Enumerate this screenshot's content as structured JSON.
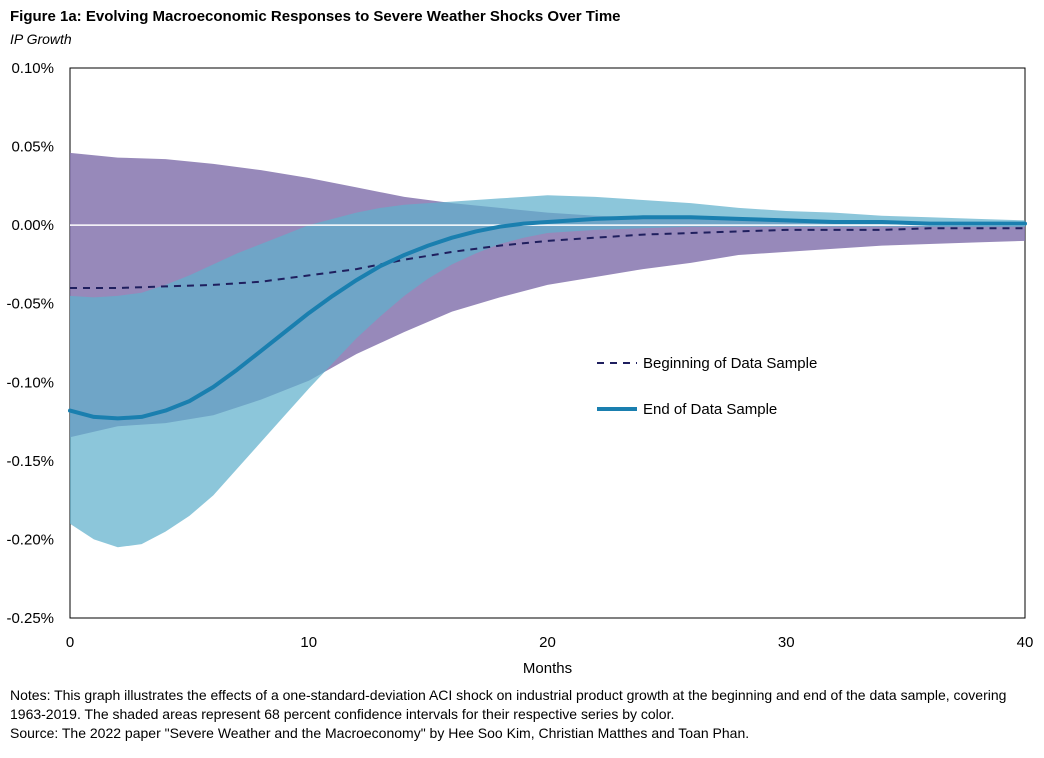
{
  "figure": {
    "title": "Figure 1a: Evolving Macroeconomic Responses to Severe Weather Shocks Over Time",
    "subtitle": "IP Growth"
  },
  "notes": {
    "line1": "Notes: This graph illustrates the effects of a one-standard-deviation ACI shock on industrial product growth at the beginning and end of the data sample, covering 1963-2019.  The shaded areas represent 68 percent confidence intervals for their respective series by color.",
    "source": "Source: The 2022  paper \"Severe Weather and the Macroeconomy\" by Hee Soo Kim, Christian Matthes and Toan Phan."
  },
  "colors": {
    "beginning_band": "#8574AE",
    "end_band": "#5FB0CC",
    "beginning_line": "#1F1F5E",
    "end_line": "#1A7FAF",
    "zero_line": "#ffffff"
  },
  "chart_data": {
    "type": "line",
    "xlabel": "Months",
    "ylabel": "",
    "xlim": [
      0,
      40
    ],
    "ylim": [
      -0.25,
      0.1
    ],
    "x_ticks": [
      0,
      10,
      20,
      30,
      40
    ],
    "x_tick_labels": [
      "0",
      "10",
      "20",
      "30",
      "40"
    ],
    "y_ticks": [
      0.1,
      0.05,
      0.0,
      -0.05,
      -0.1,
      -0.15,
      -0.2,
      -0.25
    ],
    "y_tick_labels": [
      "0.10%",
      "0.05%",
      "0.00%",
      "-0.05%",
      "-0.10%",
      "-0.15%",
      "-0.20%",
      "-0.25%"
    ],
    "legend_position": "middle-right",
    "series": [
      {
        "name": "Beginning of Data Sample",
        "style": "dashed",
        "x": [
          0,
          2,
          4,
          6,
          8,
          10,
          12,
          14,
          16,
          18,
          20,
          22,
          24,
          26,
          28,
          30,
          32,
          34,
          36,
          38,
          40
        ],
        "values": [
          -0.04,
          -0.04,
          -0.039,
          -0.038,
          -0.036,
          -0.032,
          -0.028,
          -0.022,
          -0.017,
          -0.013,
          -0.01,
          -0.008,
          -0.006,
          -0.005,
          -0.004,
          -0.003,
          -0.003,
          -0.003,
          -0.002,
          -0.002,
          -0.002
        ],
        "band_upper": [
          0.046,
          0.043,
          0.042,
          0.039,
          0.035,
          0.03,
          0.024,
          0.018,
          0.014,
          0.011,
          0.008,
          0.006,
          0.005,
          0.004,
          0.004,
          0.003,
          0.003,
          0.003,
          0.002,
          0.002,
          0.002
        ],
        "band_lower": [
          -0.135,
          -0.128,
          -0.126,
          -0.121,
          -0.111,
          -0.099,
          -0.082,
          -0.068,
          -0.055,
          -0.046,
          -0.038,
          -0.033,
          -0.028,
          -0.024,
          -0.019,
          -0.017,
          -0.015,
          -0.013,
          -0.012,
          -0.011,
          -0.01
        ]
      },
      {
        "name": "End of Data Sample",
        "style": "solid",
        "x": [
          0,
          1,
          2,
          3,
          4,
          5,
          6,
          7,
          8,
          9,
          10,
          11,
          12,
          13,
          14,
          15,
          16,
          17,
          18,
          19,
          20,
          22,
          24,
          26,
          28,
          30,
          32,
          34,
          36,
          38,
          40
        ],
        "values": [
          -0.118,
          -0.122,
          -0.123,
          -0.122,
          -0.118,
          -0.112,
          -0.103,
          -0.092,
          -0.08,
          -0.068,
          -0.056,
          -0.045,
          -0.035,
          -0.026,
          -0.019,
          -0.013,
          -0.008,
          -0.004,
          -0.001,
          0.001,
          0.002,
          0.004,
          0.005,
          0.005,
          0.004,
          0.003,
          0.002,
          0.002,
          0.001,
          0.001,
          0.001
        ],
        "band_upper": [
          -0.045,
          -0.046,
          -0.045,
          -0.043,
          -0.038,
          -0.032,
          -0.025,
          -0.018,
          -0.012,
          -0.006,
          0.0,
          0.004,
          0.008,
          0.011,
          0.013,
          0.014,
          0.015,
          0.016,
          0.017,
          0.018,
          0.019,
          0.018,
          0.016,
          0.014,
          0.011,
          0.009,
          0.008,
          0.006,
          0.005,
          0.004,
          0.003
        ],
        "band_lower": [
          -0.19,
          -0.2,
          -0.205,
          -0.203,
          -0.195,
          -0.185,
          -0.172,
          -0.155,
          -0.138,
          -0.121,
          -0.104,
          -0.088,
          -0.072,
          -0.058,
          -0.045,
          -0.034,
          -0.025,
          -0.018,
          -0.012,
          -0.008,
          -0.005,
          -0.003,
          -0.002,
          -0.001,
          -0.001,
          -0.001,
          -0.001,
          -0.001,
          -0.001,
          -0.001,
          -0.001
        ]
      }
    ]
  }
}
